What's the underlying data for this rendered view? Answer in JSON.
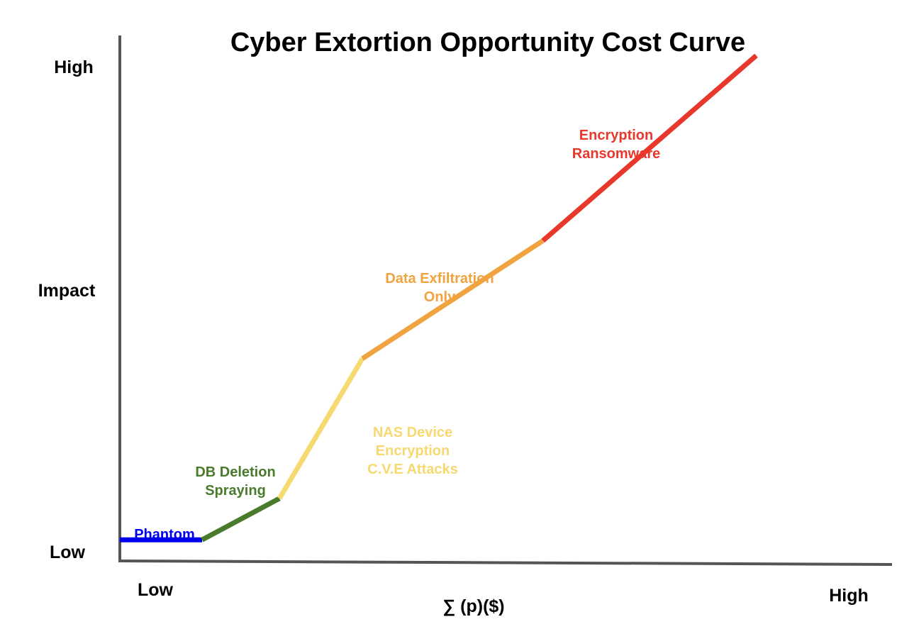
{
  "chart_data": {
    "type": "line",
    "title": "Cyber Extortion Opportunity Cost Curve",
    "xlabel": "∑ (p)($)",
    "ylabel": "Impact",
    "x_ticks": [
      "Low",
      "High"
    ],
    "y_ticks": [
      "Low",
      "High"
    ],
    "xlim": [
      0,
      100
    ],
    "ylim": [
      0,
      100
    ],
    "grid": false,
    "segments": [
      {
        "label": [
          "Phantom"
        ],
        "color": "#0000ee",
        "points": [
          [
            0,
            2
          ],
          [
            11.8,
            2
          ]
        ]
      },
      {
        "label": [
          "DB Deletion",
          "Spraying"
        ],
        "color": "#4a7a2c",
        "points": [
          [
            11.8,
            2
          ],
          [
            22.9,
            10.5
          ]
        ]
      },
      {
        "label": [
          "NAS Device",
          "Encryption",
          "C.V.E Attacks"
        ],
        "color": "#f6d970",
        "points": [
          [
            22.9,
            10.5
          ],
          [
            34.8,
            39.2
          ]
        ]
      },
      {
        "label": [
          "Data Exfiltration",
          "Only"
        ],
        "color": "#f0a33e",
        "points": [
          [
            34.8,
            39.2
          ],
          [
            60.7,
            63.4
          ]
        ]
      },
      {
        "label": [
          "Encryption",
          "Ransomware"
        ],
        "color": "#e8382c",
        "points": [
          [
            60.7,
            63.4
          ],
          [
            91.3,
            101.4
          ]
        ]
      }
    ]
  }
}
